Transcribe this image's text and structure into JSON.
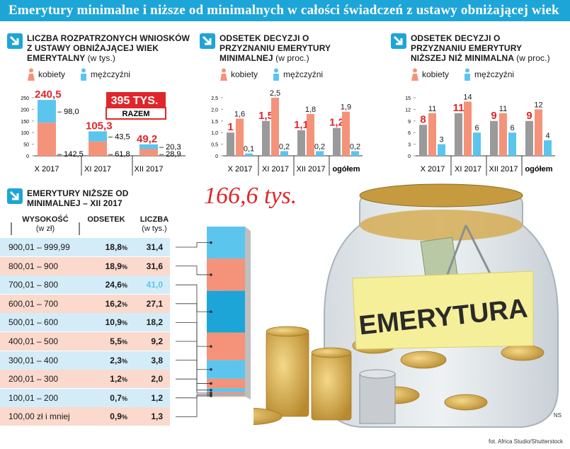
{
  "banner": "Emerytury minimalne i niższe od minimalnych w całości świadczeń z ustawy obniżającej wiek",
  "legend": {
    "women": "kobiety",
    "men": "mężczyźni"
  },
  "colors": {
    "women": "#f4937a",
    "men": "#5bc5ee",
    "gray": "#9a9a9a",
    "red": "#e0262b",
    "blue": "#1ea5d8"
  },
  "chart_data": [
    {
      "type": "bar",
      "id": "applications",
      "title": "Liczba rozpatrzonych wniosków z ustawy obniżającej wiek emerytalny",
      "unit": "(w tys.)",
      "categories": [
        "X 2017",
        "XI 2017",
        "XII 2017"
      ],
      "series": [
        {
          "name": "kobiety",
          "values": [
            142.5,
            61.8,
            28.9
          ],
          "labels": [
            "142,5",
            "61,8",
            "28,9"
          ]
        },
        {
          "name": "mężczyźni",
          "values": [
            98.0,
            43.5,
            20.3
          ],
          "labels": [
            "98,0",
            "43,5",
            "20,3"
          ]
        }
      ],
      "totals": [
        "240,5",
        "105,3",
        "49,2"
      ],
      "yticks": [
        "0",
        "50",
        "100",
        "150",
        "200",
        "250"
      ],
      "ylim": [
        0,
        250
      ],
      "badge": {
        "value": "395",
        "unit": "TYS.",
        "label": "RAZEM"
      }
    },
    {
      "type": "bar",
      "id": "minimal",
      "title": "Odsetek decyzji o przyznaniu emerytury minimalnej",
      "unit": "(w proc.)",
      "categories": [
        "X 2017",
        "XI 2017",
        "XII 2017",
        "ogółem"
      ],
      "series": [
        {
          "name": "ogółem",
          "values": [
            1.0,
            1.5,
            1.1,
            1.2
          ],
          "labels": [
            "1",
            "1,5",
            "1,1",
            "1,2"
          ]
        },
        {
          "name": "kobiety",
          "values": [
            1.6,
            2.5,
            1.8,
            1.9
          ],
          "labels": [
            "1,6",
            "2,5",
            "1,8",
            "1,9"
          ]
        },
        {
          "name": "mężczyźni",
          "values": [
            0.1,
            0.2,
            0.2,
            0.2
          ],
          "labels": [
            "0,1",
            "0,2",
            "0,2",
            "0,2"
          ]
        }
      ],
      "yticks": [
        "0",
        "0,5",
        "1,0",
        "1,5",
        "2,0",
        "2,5"
      ],
      "ylim": [
        0,
        2.5
      ]
    },
    {
      "type": "bar",
      "id": "below",
      "title": "Odsetek decyzji o przyznaniu emerytury niższej niż minimalna",
      "unit": "(w proc.)",
      "categories": [
        "X 2017",
        "XI 2017",
        "XII 2017",
        "ogółem"
      ],
      "series": [
        {
          "name": "ogółem",
          "values": [
            8,
            11,
            9,
            9
          ],
          "labels": [
            "8",
            "11",
            "9",
            "9"
          ]
        },
        {
          "name": "kobiety",
          "values": [
            11,
            14,
            11,
            12
          ],
          "labels": [
            "11",
            "14",
            "11",
            "12"
          ]
        },
        {
          "name": "mężczyźni",
          "values": [
            3,
            6,
            6,
            4
          ],
          "labels": [
            "3",
            "6",
            "6",
            "4"
          ]
        }
      ],
      "yticks": [
        "0",
        "3",
        "6",
        "9",
        "12",
        "15"
      ],
      "ylim": [
        0,
        15
      ]
    },
    {
      "type": "table",
      "id": "below-minimal-table",
      "title": "Emerytury niższe od minimalnej – XII 2017",
      "total": "166,6 tys.",
      "columns": [
        "WYSOKOŚĆ",
        "(w zł)",
        "ODSETEK",
        "LICZBA",
        "(w tys.)"
      ],
      "rows": [
        {
          "range": "900,01 –  999,99",
          "pct": "18,8",
          "count": "31,4",
          "value": 31.4
        },
        {
          "range": "800,01 –  900",
          "pct": "18,9",
          "count": "31,6",
          "value": 31.6
        },
        {
          "range": "700,01 –  800",
          "pct": "24,6",
          "count": "41,0",
          "value": 41.0
        },
        {
          "range": "600,01 –  700",
          "pct": "16,2",
          "count": "27,1",
          "value": 27.1
        },
        {
          "range": "500,01 –  600",
          "pct": "10,9",
          "count": "18,2",
          "value": 18.2
        },
        {
          "range": "400,01 –  500",
          "pct": "5,5",
          "count": "9,2",
          "value": 9.2
        },
        {
          "range": "300,01 –  400",
          "pct": "2,3",
          "count": "3,8",
          "value": 3.8
        },
        {
          "range": "200,01 –  300",
          "pct": "1,2",
          "count": "2,0",
          "value": 2.0
        },
        {
          "range": "100,01 –  200",
          "pct": "0,7",
          "count": "1,2",
          "value": 1.2
        },
        {
          "range": "100,00 zł i mniej",
          "pct": "0,9",
          "count": "1,3",
          "value": 1.3
        }
      ],
      "pct_sign": "%"
    }
  ],
  "jar_label": "EMERYTURA",
  "credit": "fot. Africa Studio/Shutterstock",
  "ns": "NS"
}
